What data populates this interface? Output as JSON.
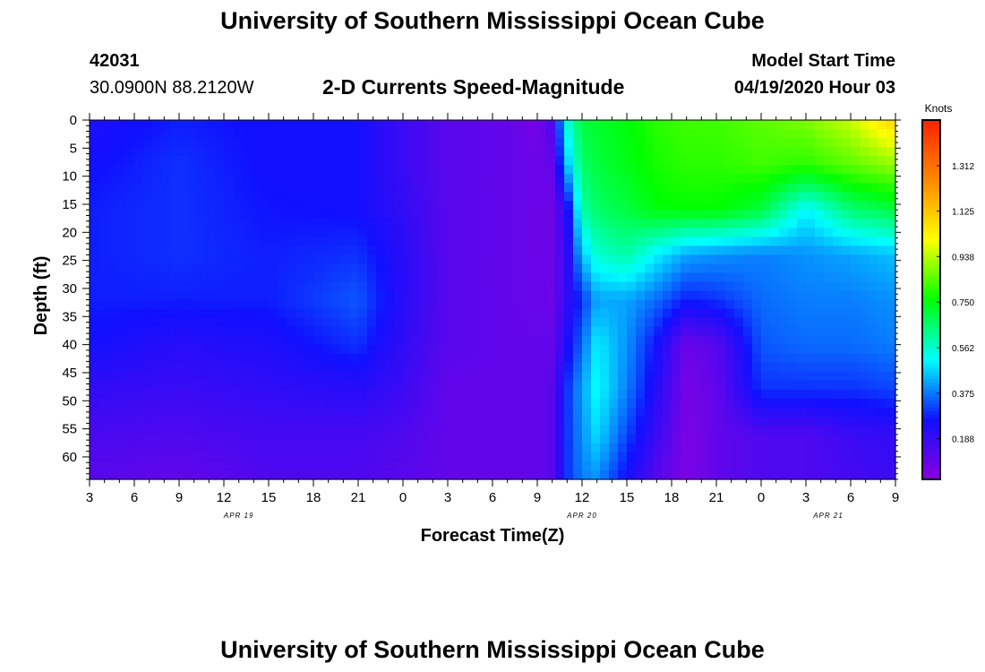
{
  "header": {
    "title_top": "University of Southern Mississippi Ocean Cube",
    "title_bottom": "University of Southern Mississippi Ocean Cube",
    "station_id": "42031",
    "station_coords": "30.0900N 88.2120W",
    "model_start_label": "Model Start Time",
    "model_start_value": "04/19/2020 Hour 03"
  },
  "chart_data": {
    "type": "heatmap",
    "title": "2-D Currents Speed-Magnitude",
    "xlabel": "Forecast Time(Z)",
    "ylabel": "Depth (ft)",
    "x_ticks": [
      "3",
      "6",
      "9",
      "12",
      "15",
      "18",
      "21",
      "0",
      "3",
      "6",
      "9",
      "12",
      "15",
      "18",
      "21",
      "0",
      "3",
      "6",
      "9"
    ],
    "date_labels": [
      "APR 19",
      "APR 20",
      "APR 21"
    ],
    "y_ticks": [
      "0",
      "5",
      "10",
      "15",
      "20",
      "25",
      "30",
      "35",
      "40",
      "45",
      "50",
      "55",
      "60"
    ],
    "ylim": [
      0,
      64
    ],
    "x_range_hours": [
      0,
      54
    ],
    "colorbar": {
      "unit": "Knots",
      "ticks": [
        "1.312",
        "1.125",
        "0.938",
        "0.750",
        "0.562",
        "0.375",
        "0.188"
      ],
      "tick_values": [
        1.312,
        1.125,
        0.938,
        0.75,
        0.562,
        0.375,
        0.188
      ],
      "range": [
        0.02,
        1.5
      ],
      "color_stops": [
        "#8a00e0",
        "#1010ff",
        "#00ffff",
        "#00ff00",
        "#ffff00",
        "#ff8800",
        "#ff2200"
      ]
    },
    "depths_ft": [
      0,
      8,
      16,
      24,
      32,
      40,
      48,
      56,
      64
    ],
    "values_by_hour": [
      {
        "hour": 0,
        "speeds": [
          0.24,
          0.26,
          0.28,
          0.28,
          0.28,
          0.26,
          0.2,
          0.15,
          0.12
        ]
      },
      {
        "hour": 6,
        "speeds": [
          0.28,
          0.3,
          0.3,
          0.3,
          0.28,
          0.22,
          0.18,
          0.14,
          0.1
        ]
      },
      {
        "hour": 12,
        "speeds": [
          0.26,
          0.26,
          0.27,
          0.28,
          0.28,
          0.24,
          0.2,
          0.16,
          0.14
        ]
      },
      {
        "hour": 18,
        "speeds": [
          0.26,
          0.26,
          0.26,
          0.3,
          0.34,
          0.3,
          0.22,
          0.16,
          0.14
        ]
      },
      {
        "hour": 21,
        "speeds": [
          0.18,
          0.18,
          0.2,
          0.22,
          0.22,
          0.2,
          0.18,
          0.14,
          0.12
        ]
      },
      {
        "hour": 24,
        "speeds": [
          0.12,
          0.12,
          0.12,
          0.12,
          0.12,
          0.12,
          0.1,
          0.1,
          0.1
        ]
      },
      {
        "hour": 28,
        "speeds": [
          0.1,
          0.1,
          0.1,
          0.1,
          0.1,
          0.1,
          0.1,
          0.1,
          0.1
        ]
      },
      {
        "hour": 30,
        "speeds": [
          0.06,
          0.08,
          0.08,
          0.08,
          0.09,
          0.1,
          0.1,
          0.1,
          0.1
        ]
      },
      {
        "hour": 31,
        "speeds": [
          0.15,
          0.1,
          0.08,
          0.08,
          0.08,
          0.1,
          0.12,
          0.12,
          0.12
        ]
      },
      {
        "hour": 32,
        "speeds": [
          0.55,
          0.45,
          0.22,
          0.2,
          0.2,
          0.24,
          0.3,
          0.3,
          0.3
        ]
      },
      {
        "hour": 33,
        "speeds": [
          0.7,
          0.66,
          0.6,
          0.45,
          0.3,
          0.36,
          0.42,
          0.4,
          0.38
        ]
      },
      {
        "hour": 34,
        "speeds": [
          0.72,
          0.7,
          0.66,
          0.56,
          0.42,
          0.5,
          0.52,
          0.48,
          0.4
        ]
      },
      {
        "hour": 36,
        "speeds": [
          0.75,
          0.74,
          0.7,
          0.6,
          0.42,
          0.4,
          0.38,
          0.32,
          0.25
        ]
      },
      {
        "hour": 38,
        "speeds": [
          0.8,
          0.78,
          0.75,
          0.5,
          0.36,
          0.26,
          0.22,
          0.18,
          0.12
        ]
      },
      {
        "hour": 40,
        "speeds": [
          0.82,
          0.8,
          0.76,
          0.42,
          0.28,
          0.08,
          0.06,
          0.05,
          0.05
        ]
      },
      {
        "hour": 42,
        "speeds": [
          0.82,
          0.8,
          0.76,
          0.4,
          0.3,
          0.12,
          0.1,
          0.1,
          0.1
        ]
      },
      {
        "hour": 45,
        "speeds": [
          0.85,
          0.82,
          0.7,
          0.38,
          0.36,
          0.34,
          0.3,
          0.14,
          0.14
        ]
      },
      {
        "hour": 48,
        "speeds": [
          0.88,
          0.8,
          0.5,
          0.4,
          0.38,
          0.36,
          0.3,
          0.14,
          0.14
        ]
      },
      {
        "hour": 51,
        "speeds": [
          0.95,
          0.85,
          0.65,
          0.42,
          0.38,
          0.36,
          0.3,
          0.18,
          0.16
        ]
      },
      {
        "hour": 54,
        "speeds": [
          1.1,
          0.9,
          0.7,
          0.45,
          0.4,
          0.38,
          0.32,
          0.2,
          0.18
        ]
      }
    ]
  }
}
